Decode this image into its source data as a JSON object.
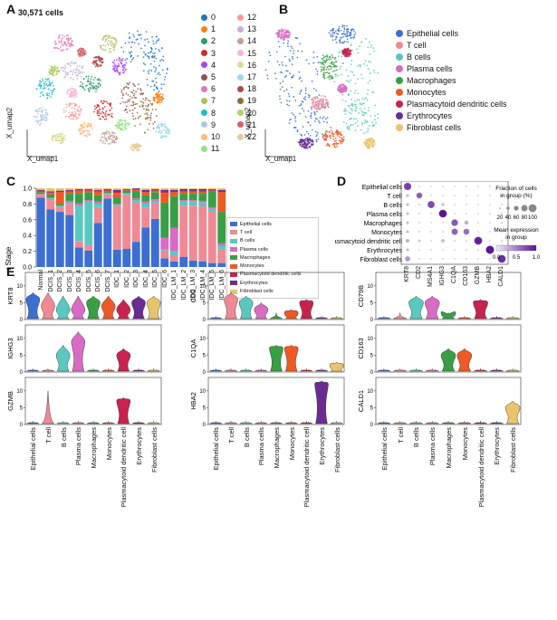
{
  "panelA": {
    "letter": "A",
    "cell_count": "30,571 cells",
    "xlabel": "X_umap1",
    "ylabel": "X_umap2",
    "clusters": [
      {
        "label": "0",
        "color": "#1f77b4"
      },
      {
        "label": "1",
        "color": "#ff7f0e"
      },
      {
        "label": "2",
        "color": "#279e68"
      },
      {
        "label": "3",
        "color": "#d62728"
      },
      {
        "label": "4",
        "color": "#aa40fc"
      },
      {
        "label": "5",
        "color": "#8c564b"
      },
      {
        "label": "6",
        "color": "#e377c2"
      },
      {
        "label": "7",
        "color": "#b5bd61"
      },
      {
        "label": "8",
        "color": "#17becf"
      },
      {
        "label": "9",
        "color": "#aec7e8"
      },
      {
        "label": "10",
        "color": "#ffbb78"
      },
      {
        "label": "11",
        "color": "#98df8a"
      },
      {
        "label": "12",
        "color": "#ff9896"
      },
      {
        "label": "13",
        "color": "#c5b0d5"
      },
      {
        "label": "14",
        "color": "#c49c94"
      },
      {
        "label": "15",
        "color": "#f7b6d2"
      },
      {
        "label": "16",
        "color": "#dbdb8d"
      },
      {
        "label": "17",
        "color": "#9edae5"
      },
      {
        "label": "18",
        "color": "#ad494a"
      },
      {
        "label": "19",
        "color": "#8c6d31"
      },
      {
        "label": "20",
        "color": "#b5cf6b"
      },
      {
        "label": "21",
        "color": "#d6616b"
      },
      {
        "label": "22",
        "color": "#e7cb94"
      }
    ]
  },
  "panelB": {
    "letter": "B",
    "xlabel": "X_umap1",
    "ylabel": "X_umap2",
    "celltypes": [
      {
        "label": "Epithelial cells",
        "color": "#3b6fd4"
      },
      {
        "label": "T cell",
        "color": "#ef8a95"
      },
      {
        "label": "B cells",
        "color": "#5ac8c0"
      },
      {
        "label": "Plasma cells",
        "color": "#d86bc4"
      },
      {
        "label": "Macrophages",
        "color": "#3a9e45"
      },
      {
        "label": "Monocytes",
        "color": "#ee5a24"
      },
      {
        "label": "Plasmacytoid dendritic cells",
        "color": "#c8234f"
      },
      {
        "label": "Erythrocytes",
        "color": "#6a2c91"
      },
      {
        "label": "Fibroblast cells",
        "color": "#e9c46a"
      }
    ]
  },
  "panelC": {
    "letter": "C",
    "chart_data": {
      "type": "bar",
      "ylabel": "Cells per Stage",
      "ylim": [
        0,
        1.0
      ],
      "yticks": [
        "0.0",
        "0.2",
        "0.4",
        "0.6",
        "0.8",
        "1.0"
      ],
      "categories": [
        "Normal",
        "DCIS_1",
        "DCIS_2",
        "DCIS_3",
        "DCIS_4",
        "DCIS_5",
        "DCIS_6",
        "DCIS_7",
        "IDC_1",
        "IDC_2",
        "IDC_3",
        "IDC_4",
        "IDC_5",
        "IDC_6",
        "IDC_LM_1",
        "IDC_LM_2",
        "IDC_LM_3",
        "IDC_LM_4",
        "IDC_LM_5",
        "IDC_LM_6"
      ],
      "series": [
        {
          "name": "Epithelial cells",
          "color": "#3b6fd4",
          "values": [
            0.88,
            0.73,
            0.7,
            0.66,
            0.25,
            0.21,
            0.56,
            0.87,
            0.22,
            0.23,
            0.32,
            0.5,
            0.61,
            0.11,
            0.07,
            0.13,
            0.08,
            0.07,
            0.05,
            0.05
          ]
        },
        {
          "name": "T cell",
          "color": "#ef8a95",
          "values": [
            0.03,
            0.12,
            0.06,
            0.14,
            0.08,
            0.07,
            0.2,
            0.05,
            0.55,
            0.68,
            0.5,
            0.25,
            0.2,
            0.1,
            0.08,
            0.65,
            0.7,
            0.7,
            0.65,
            0.17
          ]
        },
        {
          "name": "B cells",
          "color": "#5ac8c0",
          "values": [
            0.01,
            0.02,
            0.01,
            0.02,
            0.45,
            0.55,
            0.05,
            0.01,
            0.02,
            0.02,
            0.03,
            0.06,
            0.03,
            0.01,
            0.05,
            0.05,
            0.05,
            0.05,
            0.04,
            0.05
          ]
        },
        {
          "name": "Plasma cells",
          "color": "#d86bc4",
          "values": [
            0.01,
            0.01,
            0.01,
            0.02,
            0.03,
            0.02,
            0.02,
            0.01,
            0.01,
            0.01,
            0.02,
            0.02,
            0.02,
            0.15,
            0.3,
            0.02,
            0.02,
            0.02,
            0.02,
            0.03
          ]
        },
        {
          "name": "Macrophages",
          "color": "#3a9e45",
          "values": [
            0.02,
            0.04,
            0.02,
            0.09,
            0.12,
            0.1,
            0.08,
            0.02,
            0.08,
            0.03,
            0.09,
            0.08,
            0.09,
            0.45,
            0.4,
            0.08,
            0.08,
            0.09,
            0.2,
            0.4
          ]
        },
        {
          "name": "Monocytes",
          "color": "#ee5a24",
          "values": [
            0.01,
            0.02,
            0.15,
            0.03,
            0.04,
            0.02,
            0.05,
            0.01,
            0.06,
            0.01,
            0.02,
            0.04,
            0.02,
            0.12,
            0.05,
            0.03,
            0.03,
            0.03,
            0.01,
            0.25
          ]
        },
        {
          "name": "Plasmacytoid dendritic cells",
          "color": "#c8234f",
          "values": [
            0.01,
            0.01,
            0.01,
            0.01,
            0.01,
            0.01,
            0.01,
            0.01,
            0.02,
            0.0,
            0.01,
            0.01,
            0.01,
            0.02,
            0.01,
            0.01,
            0.01,
            0.01,
            0.01,
            0.01
          ]
        },
        {
          "name": "Erythrocytes",
          "color": "#6a2c91",
          "values": [
            0.01,
            0.01,
            0.01,
            0.01,
            0.01,
            0.01,
            0.01,
            0.01,
            0.02,
            0.01,
            0.01,
            0.02,
            0.01,
            0.02,
            0.02,
            0.02,
            0.02,
            0.02,
            0.01,
            0.02
          ]
        },
        {
          "name": "Fibroblast cells",
          "color": "#e9c46a",
          "values": [
            0.02,
            0.04,
            0.03,
            0.02,
            0.01,
            0.01,
            0.02,
            0.01,
            0.02,
            0.01,
            0.0,
            0.02,
            0.01,
            0.02,
            0.02,
            0.01,
            0.01,
            0.01,
            0.01,
            0.02
          ]
        }
      ]
    }
  },
  "panelD": {
    "letter": "D",
    "chart_data": {
      "type": "scatter",
      "rows": [
        "Epithelial cells",
        "T cell",
        "B cells",
        "Plasma cells",
        "Macrophages",
        "Monocytes",
        "Plasmacytoid dendritic cell",
        "Erythrocytes",
        "Fibroblast cells"
      ],
      "genes": [
        "KRT8",
        "CD2",
        "MS4A1",
        "IGHG3",
        "C1QA",
        "CD163",
        "GZMB",
        "HBA2",
        "CALD1"
      ],
      "fraction": [
        [
          0.9,
          0.05,
          0.02,
          0.05,
          0.05,
          0.05,
          0.02,
          0.05,
          0.05
        ],
        [
          0.3,
          0.7,
          0.03,
          0.05,
          0.05,
          0.05,
          0.05,
          0.05,
          0.15
        ],
        [
          0.3,
          0.15,
          0.85,
          0.3,
          0.05,
          0.05,
          0.02,
          0.05,
          0.15
        ],
        [
          0.3,
          0.15,
          0.1,
          0.95,
          0.05,
          0.05,
          0.02,
          0.05,
          0.15
        ],
        [
          0.3,
          0.15,
          0.05,
          0.1,
          0.8,
          0.45,
          0.05,
          0.05,
          0.15
        ],
        [
          0.3,
          0.15,
          0.05,
          0.1,
          0.75,
          0.7,
          0.05,
          0.05,
          0.15
        ],
        [
          0.4,
          0.25,
          0.1,
          0.35,
          0.15,
          0.1,
          0.95,
          0.05,
          0.15
        ],
        [
          0.3,
          0.05,
          0.05,
          0.05,
          0.05,
          0.05,
          0.02,
          1.0,
          0.05
        ],
        [
          0.6,
          0.1,
          0.05,
          0.05,
          0.05,
          0.05,
          0.02,
          0.1,
          0.95
        ]
      ],
      "expression": [
        [
          0.8,
          0.05,
          0.0,
          0.05,
          0.05,
          0.05,
          0.0,
          0.0,
          0.1
        ],
        [
          0.2,
          0.65,
          0.0,
          0.05,
          0.05,
          0.05,
          0.05,
          0.0,
          0.1
        ],
        [
          0.2,
          0.1,
          0.75,
          0.25,
          0.05,
          0.05,
          0.0,
          0.0,
          0.1
        ],
        [
          0.2,
          0.1,
          0.05,
          1.0,
          0.05,
          0.05,
          0.0,
          0.0,
          0.1
        ],
        [
          0.2,
          0.1,
          0.05,
          0.1,
          0.7,
          0.3,
          0.05,
          0.0,
          0.1
        ],
        [
          0.2,
          0.1,
          0.05,
          0.1,
          0.65,
          0.6,
          0.05,
          0.0,
          0.1
        ],
        [
          0.3,
          0.2,
          0.05,
          0.25,
          0.1,
          0.05,
          0.95,
          0.0,
          0.1
        ],
        [
          0.2,
          0.0,
          0.0,
          0.0,
          0.0,
          0.0,
          0.0,
          1.0,
          0.0
        ],
        [
          0.4,
          0.05,
          0.0,
          0.0,
          0.0,
          0.0,
          0.0,
          0.0,
          0.9
        ]
      ],
      "size_legend_title": "Fraction of cells\nin group (%)",
      "size_legend_ticks": [
        "20",
        "40",
        "60",
        "80",
        "100"
      ],
      "color_legend_title": "Mean expression\nin group",
      "color_legend_ticks": [
        "0.0",
        "0.5",
        "1.0"
      ]
    }
  },
  "panelE": {
    "letter": "E",
    "celltypes": [
      "Epithelial cells",
      "T cell",
      "B cells",
      "Plasma cells",
      "Macrophages",
      "Monocytes",
      "Plasmacytoid dendritic cell",
      "Erythrocytes",
      "Fibroblast cells"
    ],
    "colors": [
      "#3b6fd4",
      "#ef8a95",
      "#5ac8c0",
      "#d86bc4",
      "#3a9e45",
      "#ee5a24",
      "#c8234f",
      "#6a2c91",
      "#e9c46a"
    ],
    "yticks": [
      "0",
      "5",
      "10"
    ],
    "genes": [
      "KRT8",
      "CD2",
      "CD79B",
      "IGHG3",
      "C1QA",
      "CD163",
      "GZMB",
      "HBA2",
      "CALD1"
    ],
    "chart_data": {
      "type": "violin",
      "peak_level": [
        [
          6,
          4,
          3,
          3,
          5,
          4,
          3,
          5,
          5
        ],
        [
          0.5,
          6,
          5,
          3,
          1.5,
          2,
          5,
          0.5,
          0.5
        ],
        [
          0.5,
          1,
          5,
          5,
          2,
          1,
          5,
          0.5,
          0.5
        ],
        [
          0.5,
          0.5,
          5,
          9,
          1,
          0.5,
          5,
          0.5,
          0.5
        ],
        [
          0.5,
          0.5,
          0.5,
          0.5,
          7,
          7,
          0.5,
          0.5,
          2
        ],
        [
          0.5,
          0.5,
          0.5,
          0.5,
          5,
          5,
          0.5,
          0.5,
          0.5
        ],
        [
          0.5,
          0.5,
          0.5,
          0.5,
          0.5,
          0.5,
          7,
          0.5,
          0.5
        ],
        [
          0.5,
          0.5,
          0.5,
          0.5,
          0.5,
          0.5,
          0.5,
          12,
          0.5
        ],
        [
          0.5,
          0.5,
          0.5,
          0.5,
          0.5,
          0.5,
          0.5,
          0.5,
          5
        ]
      ],
      "max_level": [
        [
          8,
          8,
          7,
          7,
          7,
          7,
          6,
          7,
          7
        ],
        [
          1,
          8,
          7,
          5,
          2,
          3,
          6,
          1,
          1
        ],
        [
          1,
          2,
          7,
          7,
          2,
          1,
          6,
          1,
          1
        ],
        [
          1,
          1,
          8,
          12,
          1,
          1,
          7,
          1,
          1
        ],
        [
          1,
          1,
          1,
          1,
          8,
          8,
          1,
          1,
          3
        ],
        [
          1,
          1,
          1,
          1,
          7,
          7,
          1,
          1,
          1
        ],
        [
          1,
          10,
          1,
          1,
          1,
          1,
          8,
          1,
          1
        ],
        [
          1,
          1,
          1,
          1,
          1,
          1,
          1,
          13,
          1
        ],
        [
          1,
          1,
          1,
          1,
          1,
          1,
          1,
          1,
          7
        ]
      ]
    }
  }
}
